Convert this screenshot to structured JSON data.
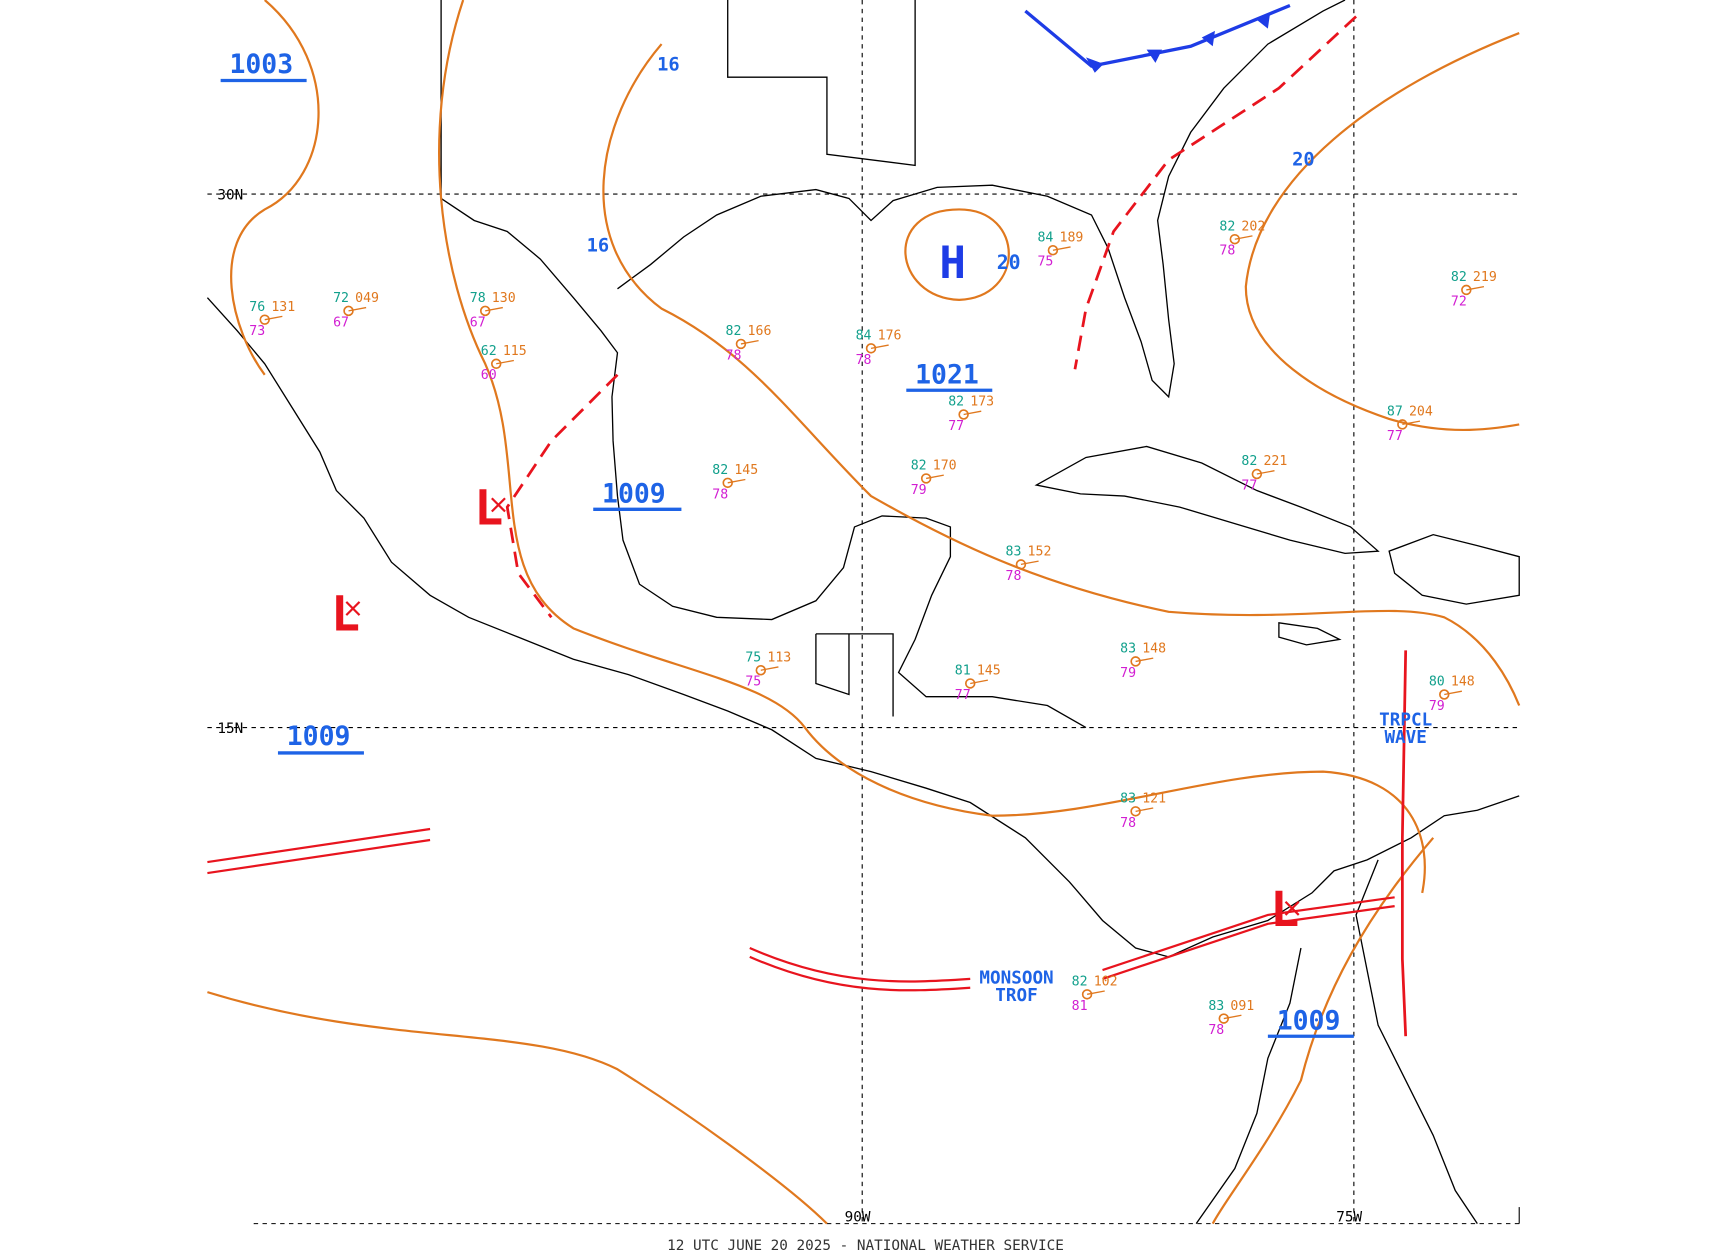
{
  "footer": "12 UTC JUNE 20 2025 - NATIONAL WEATHER SERVICE",
  "grid_labels": [
    "30N",
    "15N",
    "90W",
    "75W"
  ],
  "pressure_centers": [
    "1003",
    "1009",
    "1021",
    "1009",
    "1009"
  ],
  "high": {
    "symbol": "H",
    "value": "20"
  },
  "lows": [
    "L",
    "L",
    "L"
  ],
  "isobar_labels": [
    "16",
    "16",
    "20"
  ],
  "features": {
    "tropical_wave": [
      "TRPCL",
      "WAVE"
    ],
    "monsoon_trough": [
      "MONSOON",
      "TROF"
    ]
  },
  "stations": [
    {
      "temp": "82",
      "pressure": "166",
      "dew": "78"
    },
    {
      "temp": "84",
      "pressure": "176",
      "dew": "78"
    },
    {
      "temp": "82",
      "pressure": "173",
      "dew": "77"
    },
    {
      "temp": "82",
      "pressure": "145",
      "dew": "78"
    },
    {
      "temp": "82",
      "pressure": "170",
      "dew": "79"
    },
    {
      "temp": "83",
      "pressure": "152",
      "dew": "78"
    },
    {
      "temp": "83",
      "pressure": "148",
      "dew": "79"
    },
    {
      "temp": "75",
      "pressure": "113",
      "dew": "75"
    },
    {
      "temp": "81",
      "pressure": "145",
      "dew": "77"
    },
    {
      "temp": "83",
      "pressure": "121",
      "dew": "78"
    },
    {
      "temp": "83",
      "pressure": "091",
      "dew": "78"
    },
    {
      "temp": "82",
      "pressure": "102",
      "dew": "81"
    },
    {
      "temp": "62",
      "pressure": "115",
      "dew": "60"
    },
    {
      "temp": "78",
      "pressure": "130",
      "dew": "67"
    },
    {
      "temp": "72",
      "pressure": "049",
      "dew": "67"
    },
    {
      "temp": "76",
      "pressure": "131",
      "dew": "73"
    },
    {
      "temp": "82",
      "pressure": "202",
      "dew": "78"
    },
    {
      "temp": "82",
      "pressure": "221",
      "dew": "77"
    },
    {
      "temp": "87",
      "pressure": "204",
      "dew": "77"
    },
    {
      "temp": "80",
      "pressure": "148",
      "dew": "79"
    },
    {
      "temp": "82",
      "pressure": "219",
      "dew": "72"
    },
    {
      "temp": "84",
      "pressure": "189",
      "dew": "75"
    }
  ]
}
